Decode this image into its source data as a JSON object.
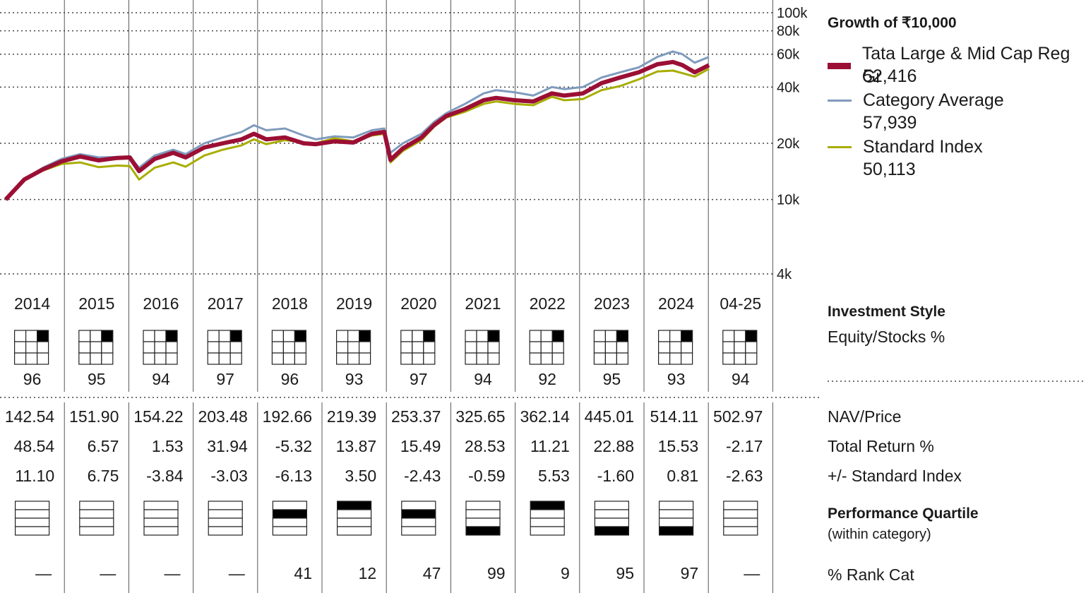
{
  "legend": {
    "title": "Growth of ₹10,000",
    "items": [
      {
        "name": "Tata Large & Mid Cap Reg Gr",
        "value": "52,416",
        "color": "#9b0f35"
      },
      {
        "name": "Category Average",
        "value": "57,939",
        "color": "#7f9bbd"
      },
      {
        "name": "Standard Index",
        "value": "50,113",
        "color": "#a7ad00"
      }
    ]
  },
  "labels": {
    "investment_style": "Investment Style",
    "equity_stocks": "Equity/Stocks %",
    "nav_price": "NAV/Price",
    "total_return": "Total Return %",
    "plus_minus": "+/- Standard Index",
    "perf_quartile": "Performance Quartile",
    "within_category": "(within category)",
    "rank_cat": "% Rank Cat"
  },
  "chart_data": {
    "type": "line",
    "yscale": "log",
    "ylim": [
      4000,
      100000
    ],
    "yticks": [
      4000,
      10000,
      20000,
      40000,
      60000,
      80000,
      100000
    ],
    "ytick_labels": [
      "4k",
      "10k",
      "20k",
      "40k",
      "60k",
      "80k",
      "100k"
    ],
    "xlim": [
      2014.0,
      2025.33
    ],
    "series": [
      {
        "name": "Tata Large & Mid Cap Reg Gr",
        "color": "#9b0f35",
        "points": [
          [
            2014.0,
            10000
          ],
          [
            2014.3,
            12800
          ],
          [
            2014.6,
            14500
          ],
          [
            2014.9,
            16000
          ],
          [
            2015.2,
            17000
          ],
          [
            2015.5,
            16200
          ],
          [
            2015.8,
            16700
          ],
          [
            2016.0,
            16800
          ],
          [
            2016.15,
            14200
          ],
          [
            2016.4,
            16500
          ],
          [
            2016.7,
            17800
          ],
          [
            2016.9,
            16800
          ],
          [
            2017.2,
            19000
          ],
          [
            2017.5,
            20000
          ],
          [
            2017.8,
            21000
          ],
          [
            2018.0,
            22500
          ],
          [
            2018.2,
            21000
          ],
          [
            2018.5,
            21500
          ],
          [
            2018.8,
            20000
          ],
          [
            2019.0,
            19800
          ],
          [
            2019.3,
            20500
          ],
          [
            2019.6,
            20200
          ],
          [
            2019.9,
            22500
          ],
          [
            2020.1,
            23000
          ],
          [
            2020.2,
            16300
          ],
          [
            2020.4,
            18800
          ],
          [
            2020.7,
            21500
          ],
          [
            2020.9,
            25000
          ],
          [
            2021.1,
            28000
          ],
          [
            2021.4,
            30500
          ],
          [
            2021.7,
            34000
          ],
          [
            2021.9,
            35000
          ],
          [
            2022.2,
            34000
          ],
          [
            2022.5,
            33500
          ],
          [
            2022.8,
            37000
          ],
          [
            2023.0,
            36000
          ],
          [
            2023.3,
            37000
          ],
          [
            2023.6,
            42000
          ],
          [
            2023.9,
            45000
          ],
          [
            2024.2,
            48000
          ],
          [
            2024.5,
            53000
          ],
          [
            2024.75,
            54500
          ],
          [
            2024.9,
            52500
          ],
          [
            2025.1,
            48000
          ],
          [
            2025.33,
            52416
          ]
        ]
      },
      {
        "name": "Category Average",
        "color": "#7f9bbd",
        "points": [
          [
            2014.0,
            10000
          ],
          [
            2014.3,
            12900
          ],
          [
            2014.6,
            14800
          ],
          [
            2014.9,
            16500
          ],
          [
            2015.2,
            17500
          ],
          [
            2015.5,
            16800
          ],
          [
            2015.8,
            16900
          ],
          [
            2016.0,
            17000
          ],
          [
            2016.15,
            14800
          ],
          [
            2016.4,
            17200
          ],
          [
            2016.7,
            18500
          ],
          [
            2016.9,
            17500
          ],
          [
            2017.2,
            20000
          ],
          [
            2017.5,
            21500
          ],
          [
            2017.8,
            23000
          ],
          [
            2018.0,
            25000
          ],
          [
            2018.2,
            23500
          ],
          [
            2018.5,
            24000
          ],
          [
            2018.8,
            22000
          ],
          [
            2019.0,
            21000
          ],
          [
            2019.3,
            21800
          ],
          [
            2019.6,
            21500
          ],
          [
            2019.9,
            23500
          ],
          [
            2020.1,
            24000
          ],
          [
            2020.2,
            17800
          ],
          [
            2020.4,
            20000
          ],
          [
            2020.7,
            22500
          ],
          [
            2020.9,
            26000
          ],
          [
            2021.1,
            29000
          ],
          [
            2021.4,
            32500
          ],
          [
            2021.7,
            37000
          ],
          [
            2021.9,
            38500
          ],
          [
            2022.2,
            37500
          ],
          [
            2022.5,
            36000
          ],
          [
            2022.8,
            40000
          ],
          [
            2023.0,
            39000
          ],
          [
            2023.3,
            40000
          ],
          [
            2023.6,
            45000
          ],
          [
            2023.9,
            48000
          ],
          [
            2024.2,
            51000
          ],
          [
            2024.5,
            58000
          ],
          [
            2024.75,
            62000
          ],
          [
            2024.9,
            60000
          ],
          [
            2025.1,
            54000
          ],
          [
            2025.33,
            57939
          ]
        ]
      },
      {
        "name": "Standard Index",
        "color": "#a7ad00",
        "points": [
          [
            2014.0,
            10000
          ],
          [
            2014.3,
            12700
          ],
          [
            2014.6,
            14300
          ],
          [
            2014.9,
            15500
          ],
          [
            2015.2,
            15800
          ],
          [
            2015.5,
            14900
          ],
          [
            2015.8,
            15200
          ],
          [
            2016.0,
            15100
          ],
          [
            2016.15,
            12800
          ],
          [
            2016.4,
            14800
          ],
          [
            2016.7,
            15800
          ],
          [
            2016.9,
            15000
          ],
          [
            2017.2,
            17200
          ],
          [
            2017.5,
            18500
          ],
          [
            2017.8,
            19500
          ],
          [
            2018.0,
            21000
          ],
          [
            2018.2,
            19800
          ],
          [
            2018.5,
            20800
          ],
          [
            2018.8,
            20200
          ],
          [
            2019.0,
            20000
          ],
          [
            2019.3,
            21300
          ],
          [
            2019.6,
            20500
          ],
          [
            2019.9,
            22000
          ],
          [
            2020.1,
            22500
          ],
          [
            2020.2,
            15800
          ],
          [
            2020.4,
            18200
          ],
          [
            2020.7,
            20800
          ],
          [
            2020.9,
            24500
          ],
          [
            2021.1,
            27500
          ],
          [
            2021.4,
            29500
          ],
          [
            2021.7,
            32500
          ],
          [
            2021.9,
            33500
          ],
          [
            2022.2,
            32500
          ],
          [
            2022.5,
            32000
          ],
          [
            2022.8,
            35500
          ],
          [
            2023.0,
            34000
          ],
          [
            2023.3,
            34500
          ],
          [
            2023.6,
            38500
          ],
          [
            2023.9,
            40500
          ],
          [
            2024.2,
            44000
          ],
          [
            2024.5,
            48500
          ],
          [
            2024.75,
            49000
          ],
          [
            2024.9,
            47500
          ],
          [
            2025.1,
            45500
          ],
          [
            2025.33,
            50113
          ]
        ]
      }
    ],
    "table": {
      "years": [
        "2014",
        "2015",
        "2016",
        "2017",
        "2018",
        "2019",
        "2020",
        "2021",
        "2022",
        "2023",
        "2024",
        "04-25"
      ],
      "equity_stocks_pct": [
        "96",
        "95",
        "94",
        "97",
        "96",
        "93",
        "97",
        "94",
        "92",
        "95",
        "93",
        "94"
      ],
      "nav_price": [
        "142.54",
        "151.90",
        "154.22",
        "203.48",
        "192.66",
        "219.39",
        "253.37",
        "325.65",
        "362.14",
        "445.01",
        "514.11",
        "502.97"
      ],
      "total_return_pct": [
        "48.54",
        "6.57",
        "1.53",
        "31.94",
        "-5.32",
        "13.87",
        "15.49",
        "28.53",
        "11.21",
        "22.88",
        "15.53",
        "-2.17"
      ],
      "plus_minus_index": [
        "11.10",
        "6.75",
        "-3.84",
        "-3.03",
        "-6.13",
        "3.50",
        "-2.43",
        "-0.59",
        "5.53",
        "-1.60",
        "0.81",
        "-2.63"
      ],
      "quartile": [
        0,
        0,
        0,
        0,
        2,
        1,
        2,
        4,
        1,
        4,
        4,
        0
      ],
      "rank_cat": [
        "—",
        "—",
        "—",
        "—",
        "41",
        "12",
        "47",
        "99",
        "9",
        "95",
        "97",
        "—"
      ],
      "style_box_cell": "large-growth"
    }
  }
}
